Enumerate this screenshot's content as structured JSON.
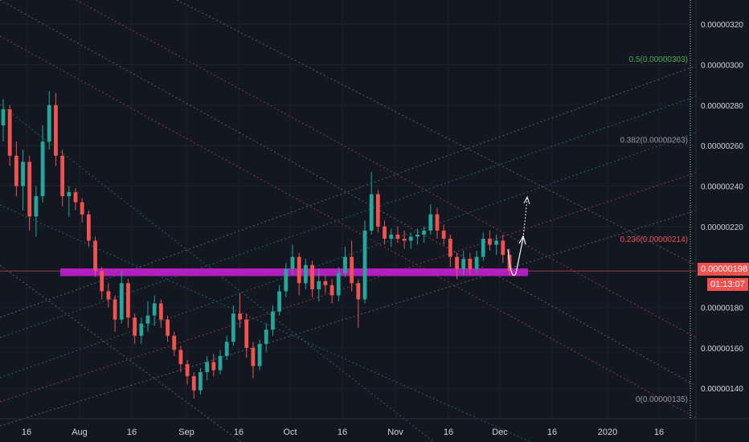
{
  "colors": {
    "background": "#131722",
    "grid": "#1e2230",
    "up": "#26a69a",
    "down": "#ef5350",
    "zone": "#c21fcf",
    "axis_text": "#d1d4dc",
    "fib0": "#9598a1",
    "fib236": "#ef5350",
    "fib382": "#9598a1",
    "fib5": "#4caf50"
  },
  "chart_data": {
    "type": "candlestick",
    "title": "",
    "xlabel": "",
    "ylabel": "",
    "x_ticks": [
      "16",
      "Aug",
      "16",
      "Sep",
      "16",
      "Oct",
      "16",
      "Nov",
      "16",
      "Dec",
      "16",
      "2020",
      "16"
    ],
    "y_ticks": [
      "0.00000320",
      "0.00000300",
      "0.00000280",
      "0.00000260",
      "0.00000240",
      "0.00000220",
      "0.00000180",
      "0.00000160",
      "0.00000140"
    ],
    "ylim": [
      1.25e-06,
      3.32e-06
    ],
    "series": [
      {
        "values": [
          {
            "o": 270,
            "h": 283,
            "l": 262,
            "c": 278
          },
          {
            "o": 278,
            "h": 280,
            "l": 250,
            "c": 255
          },
          {
            "o": 255,
            "h": 262,
            "l": 235,
            "c": 240
          },
          {
            "o": 240,
            "h": 258,
            "l": 228,
            "c": 252
          },
          {
            "o": 252,
            "h": 255,
            "l": 218,
            "c": 225
          },
          {
            "o": 225,
            "h": 240,
            "l": 215,
            "c": 235
          },
          {
            "o": 235,
            "h": 270,
            "l": 232,
            "c": 262
          },
          {
            "o": 262,
            "h": 287,
            "l": 258,
            "c": 280
          },
          {
            "o": 280,
            "h": 286,
            "l": 250,
            "c": 255
          },
          {
            "o": 255,
            "h": 258,
            "l": 230,
            "c": 235
          },
          {
            "o": 235,
            "h": 240,
            "l": 225,
            "c": 237
          },
          {
            "o": 237,
            "h": 239,
            "l": 228,
            "c": 232
          },
          {
            "o": 232,
            "h": 234,
            "l": 222,
            "c": 226
          },
          {
            "o": 226,
            "h": 228,
            "l": 210,
            "c": 213
          },
          {
            "o": 213,
            "h": 215,
            "l": 195,
            "c": 198
          },
          {
            "o": 198,
            "h": 200,
            "l": 184,
            "c": 188
          },
          {
            "o": 188,
            "h": 192,
            "l": 180,
            "c": 184
          },
          {
            "o": 184,
            "h": 186,
            "l": 168,
            "c": 174
          },
          {
            "o": 174,
            "h": 198,
            "l": 172,
            "c": 192
          },
          {
            "o": 192,
            "h": 194,
            "l": 170,
            "c": 175
          },
          {
            "o": 175,
            "h": 177,
            "l": 162,
            "c": 166
          },
          {
            "o": 166,
            "h": 175,
            "l": 162,
            "c": 172
          },
          {
            "o": 172,
            "h": 183,
            "l": 168,
            "c": 176
          },
          {
            "o": 176,
            "h": 186,
            "l": 171,
            "c": 182
          },
          {
            "o": 182,
            "h": 184,
            "l": 170,
            "c": 174
          },
          {
            "o": 174,
            "h": 176,
            "l": 163,
            "c": 166
          },
          {
            "o": 166,
            "h": 168,
            "l": 156,
            "c": 159
          },
          {
            "o": 159,
            "h": 161,
            "l": 148,
            "c": 152
          },
          {
            "o": 152,
            "h": 154,
            "l": 142,
            "c": 146
          },
          {
            "o": 146,
            "h": 148,
            "l": 135,
            "c": 139
          },
          {
            "o": 139,
            "h": 150,
            "l": 137,
            "c": 148
          },
          {
            "o": 148,
            "h": 156,
            "l": 144,
            "c": 153
          },
          {
            "o": 153,
            "h": 157,
            "l": 146,
            "c": 149
          },
          {
            "o": 149,
            "h": 159,
            "l": 147,
            "c": 156
          },
          {
            "o": 156,
            "h": 166,
            "l": 154,
            "c": 163
          },
          {
            "o": 163,
            "h": 181,
            "l": 161,
            "c": 177
          },
          {
            "o": 177,
            "h": 187,
            "l": 170,
            "c": 174
          },
          {
            "o": 174,
            "h": 177,
            "l": 155,
            "c": 160
          },
          {
            "o": 160,
            "h": 163,
            "l": 145,
            "c": 151
          },
          {
            "o": 151,
            "h": 164,
            "l": 149,
            "c": 162
          },
          {
            "o": 162,
            "h": 172,
            "l": 158,
            "c": 169
          },
          {
            "o": 169,
            "h": 181,
            "l": 166,
            "c": 178
          },
          {
            "o": 178,
            "h": 191,
            "l": 176,
            "c": 188
          },
          {
            "o": 188,
            "h": 202,
            "l": 185,
            "c": 199
          },
          {
            "o": 199,
            "h": 211,
            "l": 196,
            "c": 205
          },
          {
            "o": 205,
            "h": 207,
            "l": 186,
            "c": 192
          },
          {
            "o": 192,
            "h": 204,
            "l": 189,
            "c": 201
          },
          {
            "o": 201,
            "h": 203,
            "l": 185,
            "c": 189
          },
          {
            "o": 189,
            "h": 199,
            "l": 183,
            "c": 193
          },
          {
            "o": 193,
            "h": 196,
            "l": 187,
            "c": 191
          },
          {
            "o": 191,
            "h": 194,
            "l": 182,
            "c": 186
          },
          {
            "o": 186,
            "h": 200,
            "l": 183,
            "c": 197
          },
          {
            "o": 197,
            "h": 210,
            "l": 195,
            "c": 205
          },
          {
            "o": 205,
            "h": 213,
            "l": 188,
            "c": 192
          },
          {
            "o": 192,
            "h": 194,
            "l": 170,
            "c": 184
          },
          {
            "o": 184,
            "h": 223,
            "l": 182,
            "c": 218
          },
          {
            "o": 218,
            "h": 247,
            "l": 216,
            "c": 236
          },
          {
            "o": 236,
            "h": 238,
            "l": 217,
            "c": 220
          },
          {
            "o": 220,
            "h": 223,
            "l": 211,
            "c": 214
          },
          {
            "o": 214,
            "h": 219,
            "l": 210,
            "c": 216
          },
          {
            "o": 216,
            "h": 220,
            "l": 212,
            "c": 214
          },
          {
            "o": 214,
            "h": 218,
            "l": 209,
            "c": 213
          },
          {
            "o": 213,
            "h": 217,
            "l": 209,
            "c": 215
          },
          {
            "o": 215,
            "h": 219,
            "l": 211,
            "c": 216
          },
          {
            "o": 216,
            "h": 220,
            "l": 212,
            "c": 218
          },
          {
            "o": 218,
            "h": 231,
            "l": 216,
            "c": 226
          },
          {
            "o": 226,
            "h": 229,
            "l": 214,
            "c": 218
          },
          {
            "o": 218,
            "h": 221,
            "l": 211,
            "c": 214
          },
          {
            "o": 214,
            "h": 216,
            "l": 200,
            "c": 205
          },
          {
            "o": 205,
            "h": 207,
            "l": 194,
            "c": 199
          },
          {
            "o": 199,
            "h": 208,
            "l": 196,
            "c": 204
          },
          {
            "o": 204,
            "h": 207,
            "l": 196,
            "c": 199
          },
          {
            "o": 199,
            "h": 208,
            "l": 197,
            "c": 205
          },
          {
            "o": 205,
            "h": 217,
            "l": 203,
            "c": 214
          },
          {
            "o": 214,
            "h": 218,
            "l": 208,
            "c": 211
          },
          {
            "o": 211,
            "h": 216,
            "l": 206,
            "c": 213
          },
          {
            "o": 213,
            "h": 216,
            "l": 202,
            "c": 206
          },
          {
            "o": 206,
            "h": 209,
            "l": 196,
            "c": 198
          }
        ]
      }
    ],
    "fib_levels": [
      {
        "label": "0(0.00000135)",
        "value": 1.35e-06
      },
      {
        "label": "0.236(0.00000214)",
        "value": 2.14e-06
      },
      {
        "label": "0.382(0.00000263)",
        "value": 2.63e-06
      },
      {
        "label": "0.5(0.00000303)",
        "value": 3.03e-06
      }
    ],
    "support_zone": [
      1.955e-06,
      1.993e-06
    ],
    "current_price": "0.00000198",
    "countdown": "01:13:07"
  }
}
